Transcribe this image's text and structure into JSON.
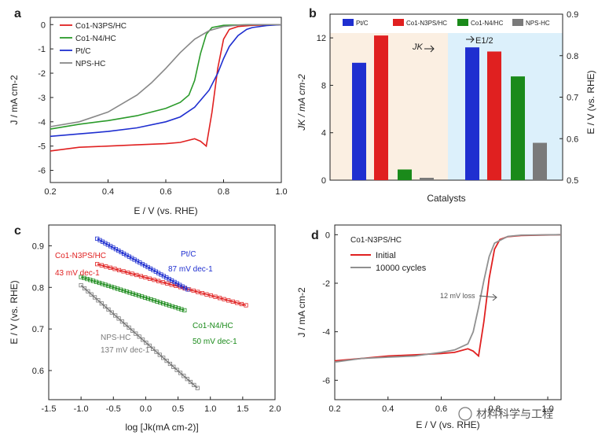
{
  "panels": [
    {
      "label": "a"
    },
    {
      "label": "b"
    },
    {
      "label": "c"
    },
    {
      "label": "d"
    }
  ],
  "watermark": "材料科学与工程",
  "chart_data": [
    {
      "id": "a",
      "type": "line",
      "xlabel": "E / V (vs. RHE)",
      "ylabel": "J / mA cm-2",
      "xlim": [
        0.2,
        1.0
      ],
      "ylim": [
        -6.5,
        0.3
      ],
      "xticks": [
        "0.2",
        "0.4",
        "0.6",
        "0.8",
        "1.0"
      ],
      "yticks": [
        "0",
        "-1",
        "-2",
        "-3",
        "-4",
        "-5",
        "-6"
      ],
      "series": [
        {
          "name": "Co1-N3PS/HC",
          "color": "#e02020",
          "x": [
            0.2,
            0.3,
            0.4,
            0.5,
            0.6,
            0.65,
            0.7,
            0.72,
            0.74,
            0.76,
            0.78,
            0.8,
            0.82,
            0.85,
            0.9,
            1.0
          ],
          "y": [
            -5.2,
            -5.05,
            -5.0,
            -4.95,
            -4.9,
            -4.85,
            -4.7,
            -4.8,
            -5.0,
            -3.6,
            -1.8,
            -0.6,
            -0.2,
            -0.08,
            -0.03,
            0.0
          ]
        },
        {
          "name": "Co1-N4/HC",
          "color": "#2a9a2a",
          "x": [
            0.2,
            0.3,
            0.4,
            0.5,
            0.6,
            0.65,
            0.68,
            0.7,
            0.72,
            0.74,
            0.76,
            0.8,
            0.9,
            1.0
          ],
          "y": [
            -4.3,
            -4.1,
            -3.95,
            -3.75,
            -3.45,
            -3.2,
            -2.9,
            -2.3,
            -1.2,
            -0.4,
            -0.12,
            -0.03,
            0.0,
            0.0
          ]
        },
        {
          "name": "Pt/C",
          "color": "#1f2fd0",
          "x": [
            0.2,
            0.3,
            0.4,
            0.5,
            0.6,
            0.65,
            0.7,
            0.75,
            0.78,
            0.8,
            0.82,
            0.85,
            0.88,
            0.9,
            0.95,
            1.0
          ],
          "y": [
            -4.6,
            -4.5,
            -4.4,
            -4.25,
            -4.0,
            -3.8,
            -3.4,
            -2.7,
            -2.0,
            -1.4,
            -0.9,
            -0.45,
            -0.2,
            -0.12,
            -0.04,
            0.0
          ]
        },
        {
          "name": "NPS-HC",
          "color": "#888888",
          "x": [
            0.2,
            0.3,
            0.4,
            0.5,
            0.55,
            0.6,
            0.65,
            0.7,
            0.75,
            0.8,
            0.85,
            0.9,
            1.0
          ],
          "y": [
            -4.2,
            -4.0,
            -3.6,
            -2.9,
            -2.4,
            -1.8,
            -1.15,
            -0.6,
            -0.25,
            -0.08,
            -0.02,
            0.0,
            0.0
          ]
        }
      ]
    },
    {
      "id": "b",
      "type": "bar",
      "xlabel": "Catalysts",
      "ylabel_left": "JK / mA cm-2",
      "ylabel_right": "E / V (vs. RHE)",
      "ylim_left": [
        0,
        14
      ],
      "ylim_right": [
        0.5,
        0.9
      ],
      "yticks_left": [
        "0",
        "4",
        "8",
        "12"
      ],
      "yticks_right": [
        "0.5",
        "0.6",
        "0.7",
        "0.8",
        "0.9"
      ],
      "legend": [
        "Pt/C",
        "Co1-N3PS/HC",
        "Co1-N4/HC",
        "NPS-HC"
      ],
      "colors": [
        "#1f2fd0",
        "#e02020",
        "#1a8a1a",
        "#7a7a7a"
      ],
      "annotations": {
        "jk": "JK",
        "e12": "E1/2"
      },
      "jk_values": [
        9.9,
        12.2,
        0.9,
        0.2
      ],
      "e_half_values": [
        0.82,
        0.81,
        0.75,
        0.59
      ]
    },
    {
      "id": "c",
      "type": "scatter",
      "xlabel": "log [Jk(mA cm-2)]",
      "ylabel": "E / V (vs. RHE)",
      "xlim": [
        -1.5,
        2.0
      ],
      "ylim": [
        0.53,
        0.95
      ],
      "xticks": [
        "-1.5",
        "-1.0",
        "-0.5",
        "0.0",
        "0.5",
        "1.0",
        "1.5",
        "2.0"
      ],
      "yticks": [
        "0.9",
        "0.8",
        "0.7",
        "0.6"
      ],
      "series": [
        {
          "name": "Co1-N3PS/HC",
          "slope_label": "43 mV dec-1",
          "color": "#e02020",
          "x": [
            -0.75,
            1.55
          ],
          "y": [
            0.856,
            0.757
          ]
        },
        {
          "name": "Pt/C",
          "slope_label": "87 mV dec-1",
          "color": "#1f2fd0",
          "x": [
            -0.75,
            0.65
          ],
          "y": [
            0.917,
            0.795
          ]
        },
        {
          "name": "Co1-N4/HC",
          "slope_label": "50 mV dec-1",
          "color": "#1a8a1a",
          "x": [
            -1.0,
            0.6
          ],
          "y": [
            0.825,
            0.745
          ]
        },
        {
          "name": "NPS-HC",
          "slope_label": "137 mV dec-1",
          "color": "#7a7a7a",
          "x": [
            -1.0,
            0.8
          ],
          "y": [
            0.805,
            0.558
          ]
        }
      ]
    },
    {
      "id": "d",
      "type": "line",
      "title": "Co1-N3PS/HC",
      "xlabel": "E / V (vs. RHE)",
      "ylabel": "J / mA cm-2",
      "xlim": [
        0.2,
        1.05
      ],
      "ylim": [
        -6.8,
        0.4
      ],
      "xticks": [
        "0.2",
        "0.4",
        "0.6",
        "0.8",
        "1.0"
      ],
      "yticks": [
        "0",
        "-2",
        "-4",
        "-6"
      ],
      "annotation": "12 mV loss",
      "series": [
        {
          "name": "Initial",
          "color": "#e02020",
          "x": [
            0.2,
            0.3,
            0.4,
            0.5,
            0.6,
            0.65,
            0.7,
            0.72,
            0.74,
            0.76,
            0.78,
            0.8,
            0.82,
            0.85,
            0.9,
            1.05
          ],
          "y": [
            -5.2,
            -5.1,
            -5.0,
            -4.95,
            -4.9,
            -4.85,
            -4.7,
            -4.8,
            -5.0,
            -3.6,
            -1.8,
            -0.6,
            -0.2,
            -0.08,
            -0.03,
            0.0
          ]
        },
        {
          "name": "10000 cycles",
          "color": "#909090",
          "x": [
            0.2,
            0.3,
            0.4,
            0.5,
            0.6,
            0.65,
            0.7,
            0.72,
            0.74,
            0.76,
            0.78,
            0.8,
            0.85,
            0.9,
            1.05
          ],
          "y": [
            -5.25,
            -5.1,
            -5.05,
            -5.0,
            -4.85,
            -4.75,
            -4.5,
            -4.0,
            -3.0,
            -1.9,
            -0.9,
            -0.35,
            -0.07,
            -0.02,
            0.0
          ]
        }
      ]
    }
  ]
}
